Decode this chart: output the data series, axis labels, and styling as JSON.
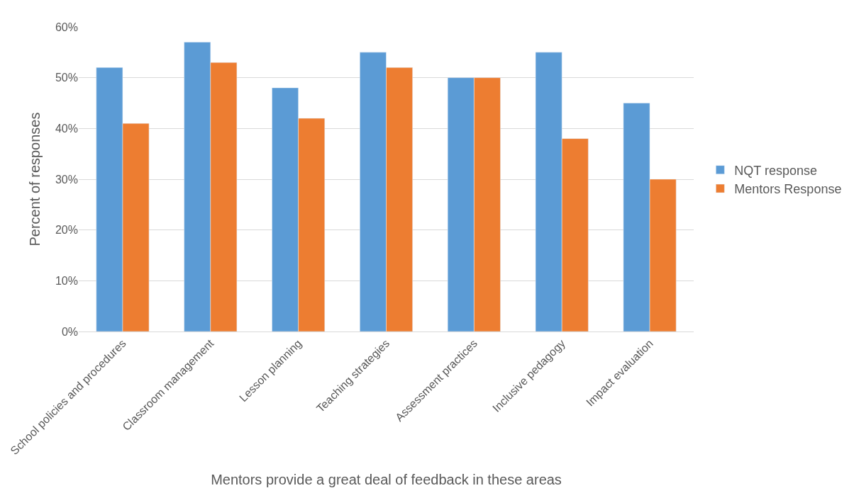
{
  "chart_data": {
    "type": "bar",
    "xlabel": "Mentors provide a great deal of feedback in these areas",
    "ylabel": "Percent of responses",
    "categories": [
      "School policies and procedures",
      "Classroom management",
      "Lesson planning",
      "Teaching strategies",
      "Assessment practices",
      "Inclusive pedagogy",
      "Impact evaluation"
    ],
    "series": [
      {
        "name": "NQT response",
        "color": "#5b9bd5",
        "values": [
          52,
          57,
          48,
          55,
          50,
          55,
          45
        ]
      },
      {
        "name": "Mentors Response",
        "color": "#ed7d31",
        "values": [
          41,
          53,
          42,
          52,
          50,
          38,
          30
        ]
      }
    ],
    "ylim": [
      0,
      60
    ],
    "yticks": [
      {
        "value": 0,
        "label": "0%"
      },
      {
        "value": 10,
        "label": "10%"
      },
      {
        "value": 20,
        "label": "20%"
      },
      {
        "value": 30,
        "label": "30%"
      },
      {
        "value": 40,
        "label": "40%"
      },
      {
        "value": 50,
        "label": "50%"
      },
      {
        "value": 60,
        "label": "60%"
      }
    ],
    "grid": "y",
    "legend": "right"
  }
}
